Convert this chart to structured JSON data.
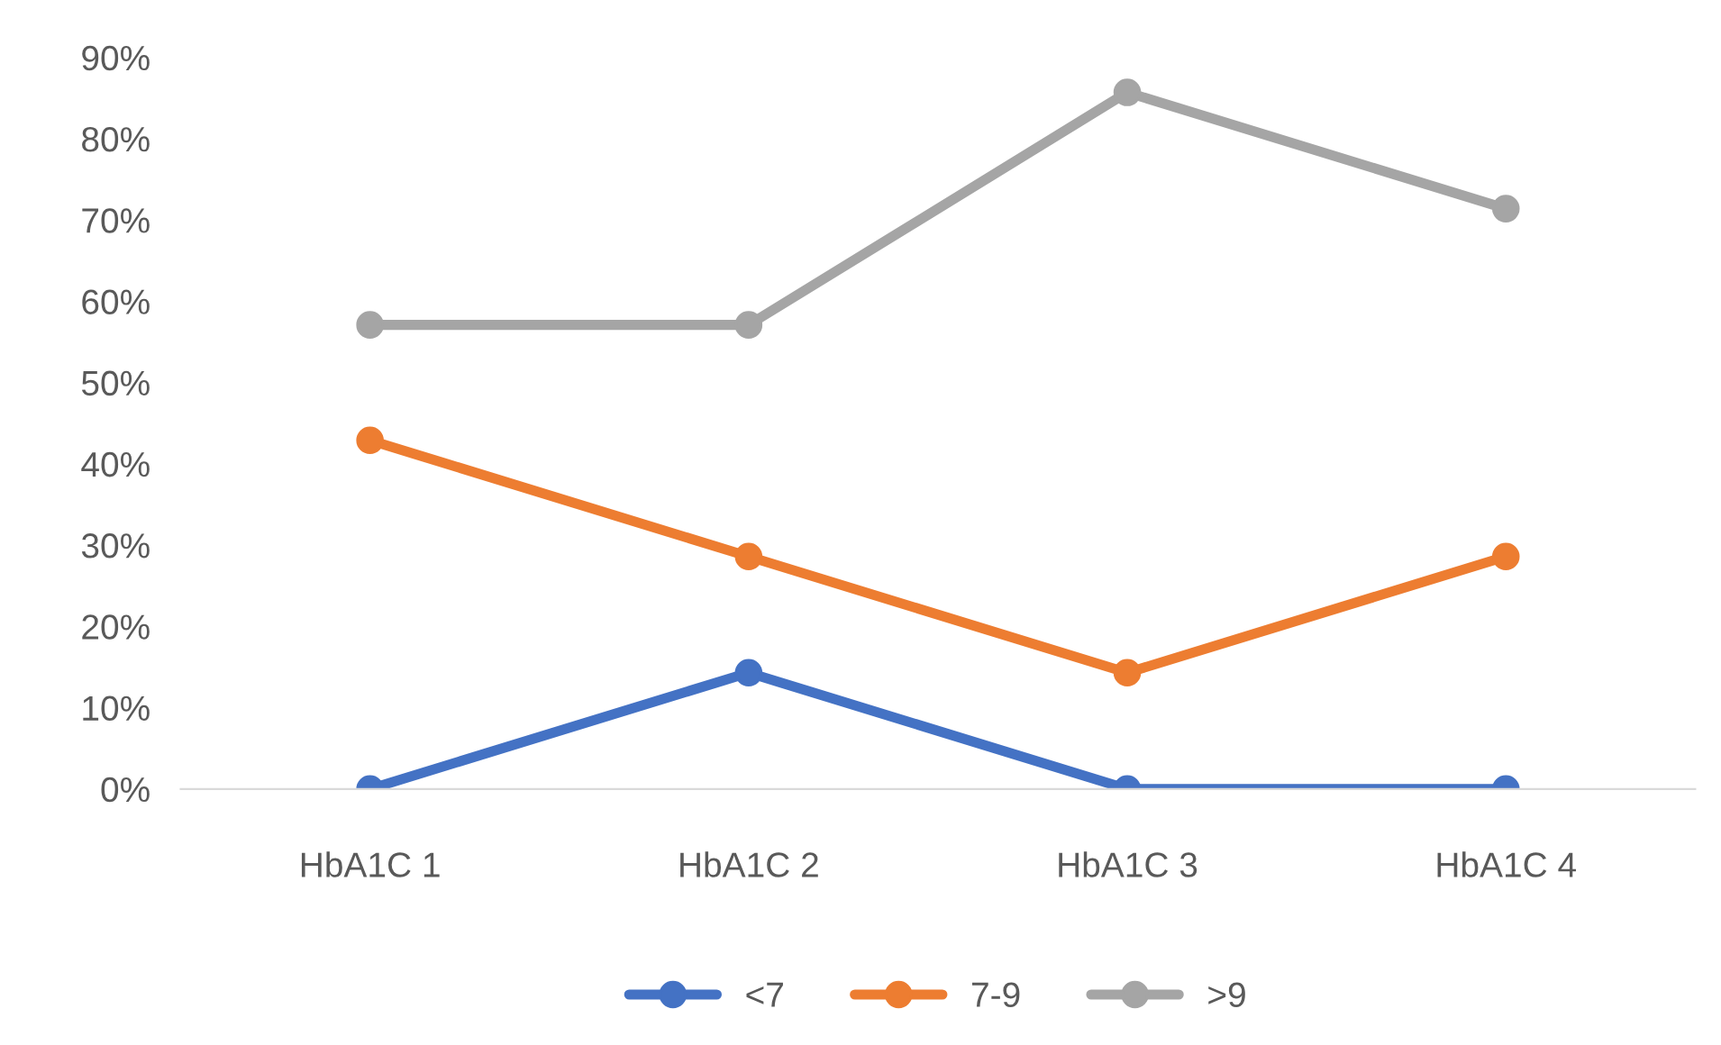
{
  "chart_data": {
    "type": "line",
    "categories": [
      "HbA1C 1",
      "HbA1C 2",
      "HbA1C 3",
      "HbA1C 4"
    ],
    "series": [
      {
        "name": "<7",
        "color": "#4472c4",
        "values": [
          0,
          14.3,
          0,
          0
        ]
      },
      {
        "name": "7-9",
        "color": "#ed7d31",
        "values": [
          42.9,
          28.6,
          14.3,
          28.6
        ]
      },
      {
        "name": ">9",
        "color": "#a5a5a5",
        "values": [
          57.1,
          57.1,
          85.7,
          71.4
        ]
      }
    ],
    "ylim": [
      0,
      90
    ],
    "yticks": [
      {
        "value": 0,
        "label": "0%"
      },
      {
        "value": 10,
        "label": "10%"
      },
      {
        "value": 20,
        "label": "20%"
      },
      {
        "value": 30,
        "label": "30%"
      },
      {
        "value": 40,
        "label": "40%"
      },
      {
        "value": 50,
        "label": "50%"
      },
      {
        "value": 60,
        "label": "60%"
      },
      {
        "value": 70,
        "label": "70%"
      },
      {
        "value": 80,
        "label": "80%"
      },
      {
        "value": 90,
        "label": "90%"
      }
    ],
    "grid": false,
    "legend": "bottom",
    "marker": "circle",
    "line_style": "solid"
  }
}
